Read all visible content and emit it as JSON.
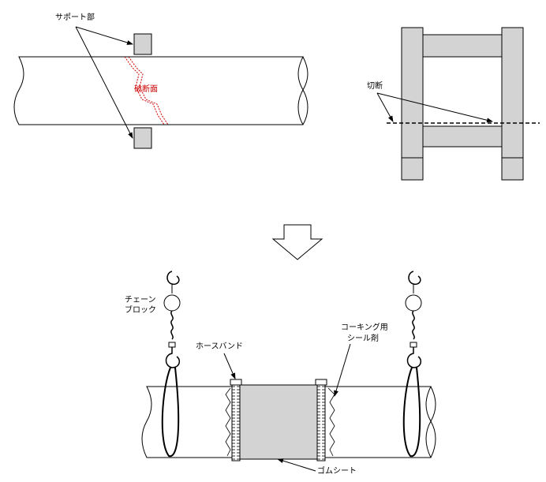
{
  "labels": {
    "support": "サポート部",
    "fracture": "破断面",
    "cut": "切断",
    "chain_block_line1": "チェーン",
    "chain_block_line2": "ブロック",
    "hose_band": "ホースバンド",
    "caulking_line1": "コーキング用",
    "caulking_line2": "シール剤",
    "rubber_sheet": "ゴムシート"
  },
  "colors": {
    "line": "#000000",
    "fill_gray": "#d3d3d3",
    "fracture_red": "#cc0000",
    "background": "#ffffff"
  },
  "icons": {
    "transition_arrow": "down-arrow-outline",
    "hook": "hook-icon",
    "chain_block": "chain-block-icon"
  }
}
